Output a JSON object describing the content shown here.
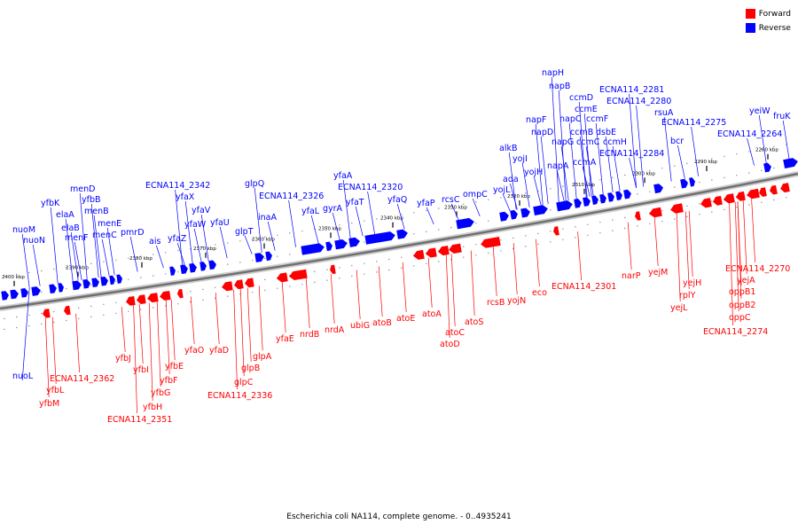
{
  "legend": {
    "forward_label": "Forward",
    "forward_color": "#ff0000",
    "reverse_label": "Reverse",
    "reverse_color": "#0000ff"
  },
  "caption": "Escherichia coli NA114, complete genome. - 0..4935241",
  "scale_labels": [
    "2290 kbp",
    "2280 kbp",
    "2300 kbp",
    "2310 kbp",
    "2320 kbp",
    "2330 kbp",
    "2340 kbp",
    "2350 kbp",
    "2360 kbp",
    "2370 kbp",
    "2380 kbp",
    "2390 kbp",
    "2400 kbp"
  ],
  "reverse_genes": [
    "nuoM",
    "nuoN",
    "yfbK",
    "elaA",
    "elaB",
    "menF",
    "menD",
    "yfbB",
    "menB",
    "menE",
    "menC",
    "pmrD",
    "ais",
    "ECNA114_2342",
    "yfaX",
    "yfaZ",
    "yfaV",
    "yfaW",
    "yfaU",
    "glpT",
    "glpQ",
    "inaA",
    "ECNA114_2326",
    "yfaL",
    "yfaA",
    "ECNA114_2320",
    "yfaT",
    "gyrA",
    "yfaQ",
    "yfaP",
    "rcsC",
    "ompC",
    "alkB",
    "yojI",
    "ada",
    "yojL",
    "yojH",
    "napF",
    "napD",
    "napA",
    "napG",
    "napH",
    "napB",
    "ccmD",
    "ccmE",
    "napC",
    "ccmF",
    "ccmB",
    "dsbE",
    "ccmC",
    "ccmA",
    "ccmH",
    "ECNA114_2284",
    "ECNA114_2281",
    "ECNA114_2280",
    "rsuA",
    "bcr",
    "ECNA114_2275",
    "yeiW",
    "fruK",
    "ECNA114_2264",
    "nuoL"
  ],
  "forward_genes": [
    "ECNA114_2362",
    "yfbL",
    "yfbM",
    "yfbJ",
    "yfbI",
    "yfbH",
    "ECNA114_2351",
    "yfbG",
    "yfbF",
    "yfbE",
    "yfaO",
    "yfaD",
    "glpC",
    "glpB",
    "glpA",
    "ECNA114_2336",
    "yfaE",
    "nrdB",
    "nrdA",
    "ubiG",
    "atoB",
    "atoE",
    "atoA",
    "atoC",
    "atoD",
    "atoS",
    "rcsB",
    "yojN",
    "eco",
    "ECNA114_2301",
    "narP",
    "yejM",
    "yejH",
    "rplY",
    "yejL",
    "ECNA114_2270",
    "yejA",
    "oppB1",
    "oppB2",
    "oppC",
    "ECNA114_2274"
  ]
}
